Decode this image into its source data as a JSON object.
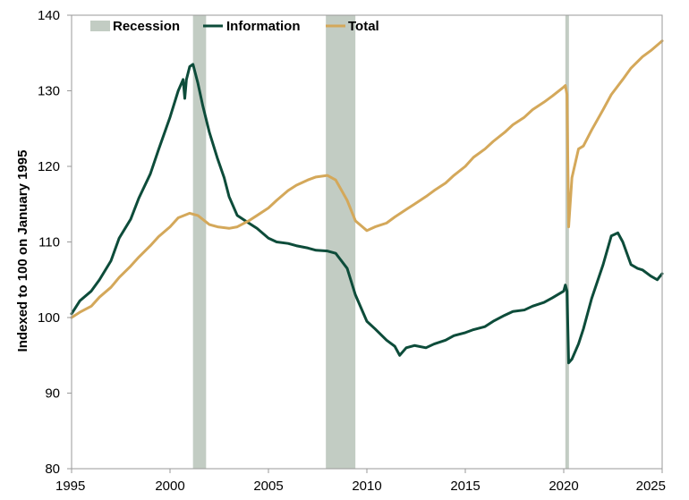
{
  "chart_data": {
    "type": "line",
    "title": "",
    "xlabel": "",
    "ylabel": "Indexed to 100 on January 1995",
    "xlim": [
      1995,
      2025
    ],
    "ylim": [
      80,
      140
    ],
    "x_ticks": [
      1995,
      2000,
      2005,
      2010,
      2015,
      2020,
      2025
    ],
    "y_ticks": [
      80,
      90,
      100,
      110,
      120,
      130,
      140
    ],
    "grid": false,
    "legend": {
      "placement": "top-left",
      "entries": [
        {
          "label": "Recession",
          "kind": "band",
          "color": "#c2ccc3"
        },
        {
          "label": "Information",
          "kind": "line",
          "color": "#0d4c3a"
        },
        {
          "label": "Total",
          "kind": "line",
          "color": "#d4a85a"
        }
      ]
    },
    "recessions": [
      {
        "start": "2001-03",
        "end": "2001-11"
      },
      {
        "start": "2007-12",
        "end": "2009-06"
      },
      {
        "start": "2020-02",
        "end": "2020-04"
      }
    ],
    "series": [
      {
        "name": "Information",
        "color": "#0d4c3a",
        "points": [
          [
            "1995-01",
            100.5
          ],
          [
            "1995-06",
            102.2
          ],
          [
            "1996-01",
            103.5
          ],
          [
            "1996-06",
            105.0
          ],
          [
            "1997-01",
            107.5
          ],
          [
            "1997-06",
            110.5
          ],
          [
            "1998-01",
            113.0
          ],
          [
            "1998-06",
            115.8
          ],
          [
            "1999-01",
            119.0
          ],
          [
            "1999-06",
            122.2
          ],
          [
            "2000-01",
            126.5
          ],
          [
            "2000-06",
            130.0
          ],
          [
            "2000-09",
            131.5
          ],
          [
            "2000-10",
            129.0
          ],
          [
            "2000-11",
            131.5
          ],
          [
            "2001-01",
            133.2
          ],
          [
            "2001-03",
            133.5
          ],
          [
            "2001-06",
            131.0
          ],
          [
            "2001-09",
            128.0
          ],
          [
            "2002-01",
            124.5
          ],
          [
            "2002-06",
            121.0
          ],
          [
            "2002-10",
            118.5
          ],
          [
            "2003-01",
            116.0
          ],
          [
            "2003-06",
            113.5
          ],
          [
            "2004-01",
            112.5
          ],
          [
            "2004-06",
            111.8
          ],
          [
            "2005-01",
            110.5
          ],
          [
            "2005-06",
            110.0
          ],
          [
            "2006-01",
            109.8
          ],
          [
            "2006-06",
            109.5
          ],
          [
            "2007-01",
            109.2
          ],
          [
            "2007-06",
            108.9
          ],
          [
            "2008-01",
            108.8
          ],
          [
            "2008-06",
            108.5
          ],
          [
            "2009-01",
            106.5
          ],
          [
            "2009-06",
            103.0
          ],
          [
            "2010-01",
            99.5
          ],
          [
            "2010-06",
            98.5
          ],
          [
            "2011-01",
            97.0
          ],
          [
            "2011-06",
            96.2
          ],
          [
            "2011-09",
            95.0
          ],
          [
            "2012-01",
            96.0
          ],
          [
            "2012-06",
            96.3
          ],
          [
            "2013-01",
            96.0
          ],
          [
            "2013-06",
            96.5
          ],
          [
            "2014-01",
            97.0
          ],
          [
            "2014-06",
            97.6
          ],
          [
            "2015-01",
            98.0
          ],
          [
            "2015-06",
            98.4
          ],
          [
            "2016-01",
            98.8
          ],
          [
            "2016-06",
            99.5
          ],
          [
            "2017-01",
            100.3
          ],
          [
            "2017-06",
            100.8
          ],
          [
            "2018-01",
            101.0
          ],
          [
            "2018-06",
            101.5
          ],
          [
            "2019-01",
            102.0
          ],
          [
            "2019-06",
            102.6
          ],
          [
            "2020-01",
            103.5
          ],
          [
            "2020-02",
            104.3
          ],
          [
            "2020-03",
            103.5
          ],
          [
            "2020-04",
            94.0
          ],
          [
            "2020-06",
            94.5
          ],
          [
            "2020-10",
            96.5
          ],
          [
            "2021-01",
            98.5
          ],
          [
            "2021-06",
            102.5
          ],
          [
            "2022-01",
            107.0
          ],
          [
            "2022-06",
            110.8
          ],
          [
            "2022-10",
            111.2
          ],
          [
            "2023-01",
            110.0
          ],
          [
            "2023-06",
            107.0
          ],
          [
            "2023-10",
            106.5
          ],
          [
            "2024-01",
            106.3
          ],
          [
            "2024-06",
            105.5
          ],
          [
            "2024-10",
            105.0
          ],
          [
            "2025-01",
            105.8
          ]
        ]
      },
      {
        "name": "Total",
        "color": "#d4a85a",
        "points": [
          [
            "1995-01",
            100.0
          ],
          [
            "1995-06",
            100.7
          ],
          [
            "1996-01",
            101.5
          ],
          [
            "1996-06",
            102.7
          ],
          [
            "1997-01",
            104.0
          ],
          [
            "1997-06",
            105.3
          ],
          [
            "1998-01",
            106.8
          ],
          [
            "1998-06",
            108.0
          ],
          [
            "1999-01",
            109.5
          ],
          [
            "1999-06",
            110.7
          ],
          [
            "2000-01",
            112.0
          ],
          [
            "2000-06",
            113.2
          ],
          [
            "2001-01",
            113.8
          ],
          [
            "2001-06",
            113.5
          ],
          [
            "2002-01",
            112.3
          ],
          [
            "2002-06",
            112.0
          ],
          [
            "2003-01",
            111.8
          ],
          [
            "2003-06",
            112.0
          ],
          [
            "2004-01",
            112.8
          ],
          [
            "2004-06",
            113.5
          ],
          [
            "2005-01",
            114.5
          ],
          [
            "2005-06",
            115.5
          ],
          [
            "2006-01",
            116.8
          ],
          [
            "2006-06",
            117.5
          ],
          [
            "2007-01",
            118.2
          ],
          [
            "2007-06",
            118.6
          ],
          [
            "2008-01",
            118.8
          ],
          [
            "2008-06",
            118.2
          ],
          [
            "2009-01",
            115.5
          ],
          [
            "2009-06",
            112.8
          ],
          [
            "2010-01",
            111.5
          ],
          [
            "2010-06",
            112.0
          ],
          [
            "2011-01",
            112.5
          ],
          [
            "2011-06",
            113.3
          ],
          [
            "2012-01",
            114.3
          ],
          [
            "2012-06",
            115.0
          ],
          [
            "2013-01",
            116.0
          ],
          [
            "2013-06",
            116.8
          ],
          [
            "2014-01",
            117.8
          ],
          [
            "2014-06",
            118.8
          ],
          [
            "2015-01",
            120.0
          ],
          [
            "2015-06",
            121.2
          ],
          [
            "2016-01",
            122.3
          ],
          [
            "2016-06",
            123.3
          ],
          [
            "2017-01",
            124.5
          ],
          [
            "2017-06",
            125.5
          ],
          [
            "2018-01",
            126.5
          ],
          [
            "2018-06",
            127.5
          ],
          [
            "2019-01",
            128.5
          ],
          [
            "2019-06",
            129.3
          ],
          [
            "2020-01",
            130.5
          ],
          [
            "2020-02",
            130.7
          ],
          [
            "2020-03",
            129.5
          ],
          [
            "2020-04",
            112.0
          ],
          [
            "2020-06",
            118.5
          ],
          [
            "2020-10",
            122.3
          ],
          [
            "2021-01",
            122.7
          ],
          [
            "2021-06",
            124.8
          ],
          [
            "2022-01",
            127.5
          ],
          [
            "2022-06",
            129.5
          ],
          [
            "2023-01",
            131.5
          ],
          [
            "2023-06",
            133.0
          ],
          [
            "2024-01",
            134.5
          ],
          [
            "2024-06",
            135.3
          ],
          [
            "2025-01",
            136.6
          ]
        ]
      }
    ]
  }
}
